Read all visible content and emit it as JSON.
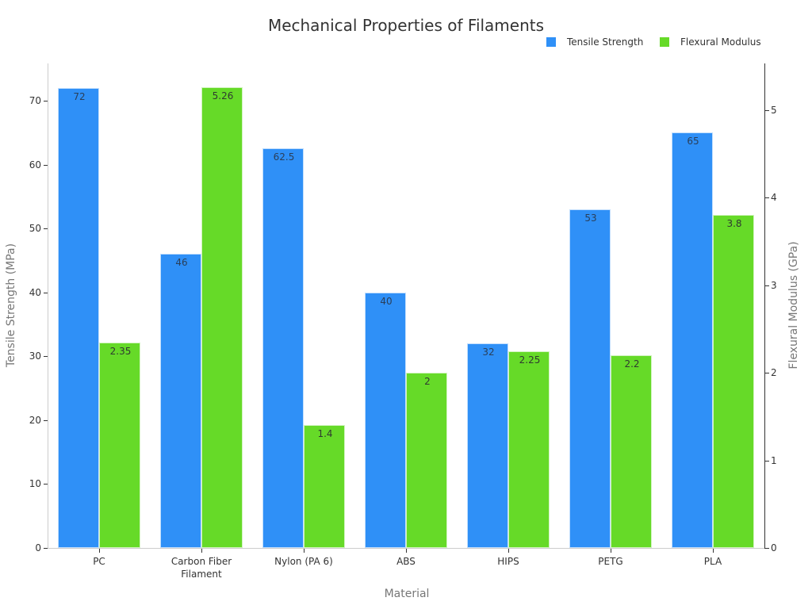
{
  "chart_data": {
    "type": "bar",
    "title": "Mechanical Properties of Filaments",
    "xlabel": "Material",
    "ylabel": "Tensile Strength (MPa)",
    "ylabel_right": "Flexural Modulus (GPa)",
    "categories": [
      "PC",
      "Carbon Fiber Filament",
      "Nylon (PA 6)",
      "ABS",
      "HIPS",
      "PETG",
      "PLA"
    ],
    "series": [
      {
        "name": "Tensile Strength",
        "axis": "left",
        "color": "#2f90f7",
        "values": [
          72,
          46,
          62.5,
          40,
          32,
          53,
          65
        ]
      },
      {
        "name": "Flexural Modulus",
        "axis": "right",
        "color": "#66da28",
        "values": [
          2.35,
          5.26,
          1.4,
          2,
          2.25,
          2.2,
          3.8
        ]
      }
    ],
    "ylim": [
      0,
      76
    ],
    "ylim_right": [
      0,
      5.5
    ],
    "yticks_left": [
      0,
      10,
      20,
      30,
      40,
      50,
      60,
      70
    ],
    "yticks_right": [
      0,
      1,
      2,
      3,
      4,
      5
    ],
    "grid": false,
    "legend_position": "top-right",
    "data_labels": true
  },
  "labels": {
    "title": "Mechanical Properties of Filaments",
    "xlabel": "Material",
    "ylabel_left": "Tensile Strength (MPa)",
    "ylabel_right": "Flexural Modulus (GPa)",
    "legend": [
      "Tensile Strength",
      "Flexural Modulus"
    ],
    "xticks": [
      "PC",
      "Carbon Fiber\nFilament",
      "Nylon (PA 6)",
      "ABS",
      "HIPS",
      "PETG",
      "PLA"
    ],
    "tensile_labels": [
      "72",
      "46",
      "62.5",
      "40",
      "32",
      "53",
      "65"
    ],
    "flexural_labels": [
      "2.35",
      "5.26",
      "1.4",
      "2",
      "2.25",
      "2.2",
      "3.8"
    ],
    "yticks_left": [
      "0",
      "10",
      "20",
      "30",
      "40",
      "50",
      "60",
      "70"
    ],
    "yticks_right": [
      "0",
      "1",
      "2",
      "3",
      "4",
      "5"
    ]
  },
  "colors": {
    "tensile": "#2f90f7",
    "flexural": "#66da28"
  }
}
